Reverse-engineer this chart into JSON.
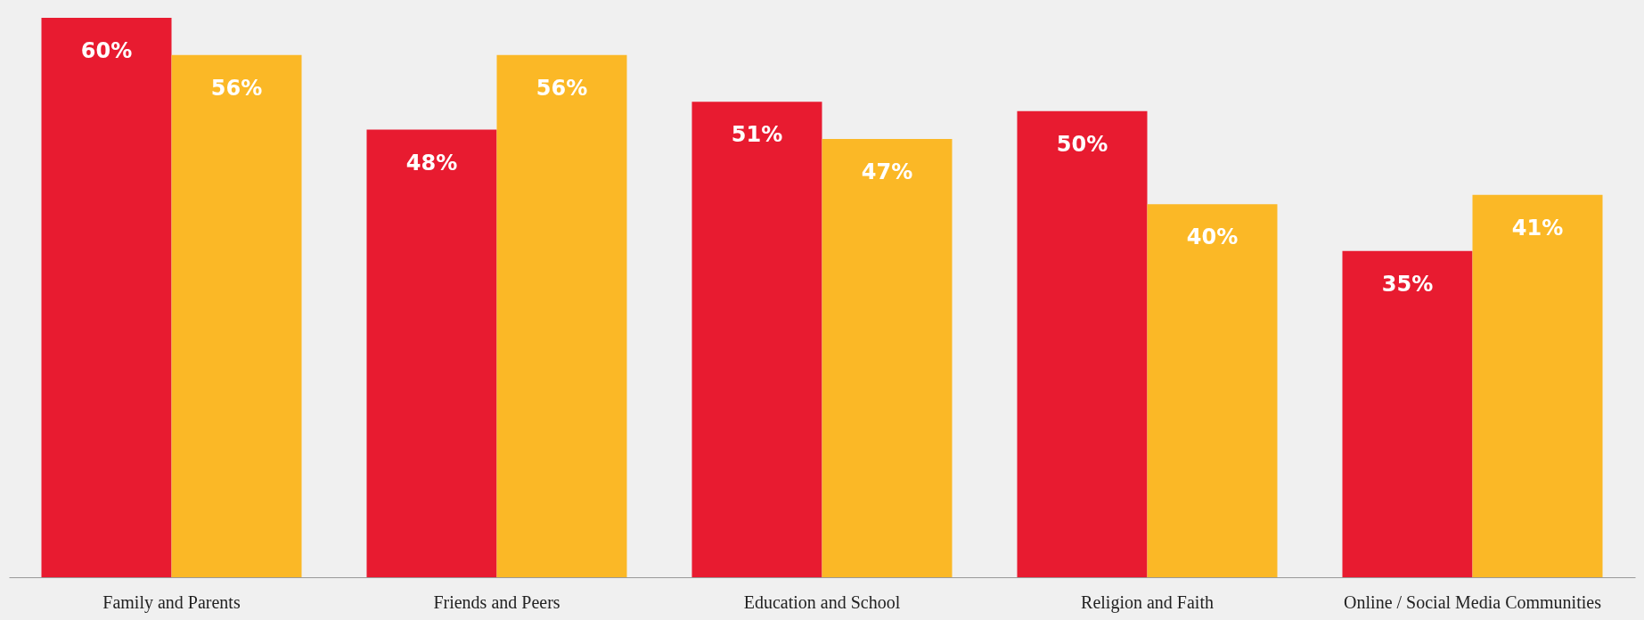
{
  "chart_data": {
    "type": "bar",
    "categories": [
      "Family and Parents",
      "Friends and Peers",
      "Education and School",
      "Religion and Faith",
      "Online / Social Media Communities"
    ],
    "series": [
      {
        "color": "#e81b30",
        "values": [
          60,
          48,
          51,
          50,
          35
        ],
        "value_labels": [
          "60%",
          "48%",
          "51%",
          "50%",
          "35%"
        ]
      },
      {
        "color": "#fbb826",
        "values": [
          56,
          56,
          47,
          40,
          41
        ],
        "value_labels": [
          "56%",
          "56%",
          "47%",
          "40%",
          "41%"
        ]
      }
    ],
    "grid": false,
    "legend": false
  }
}
